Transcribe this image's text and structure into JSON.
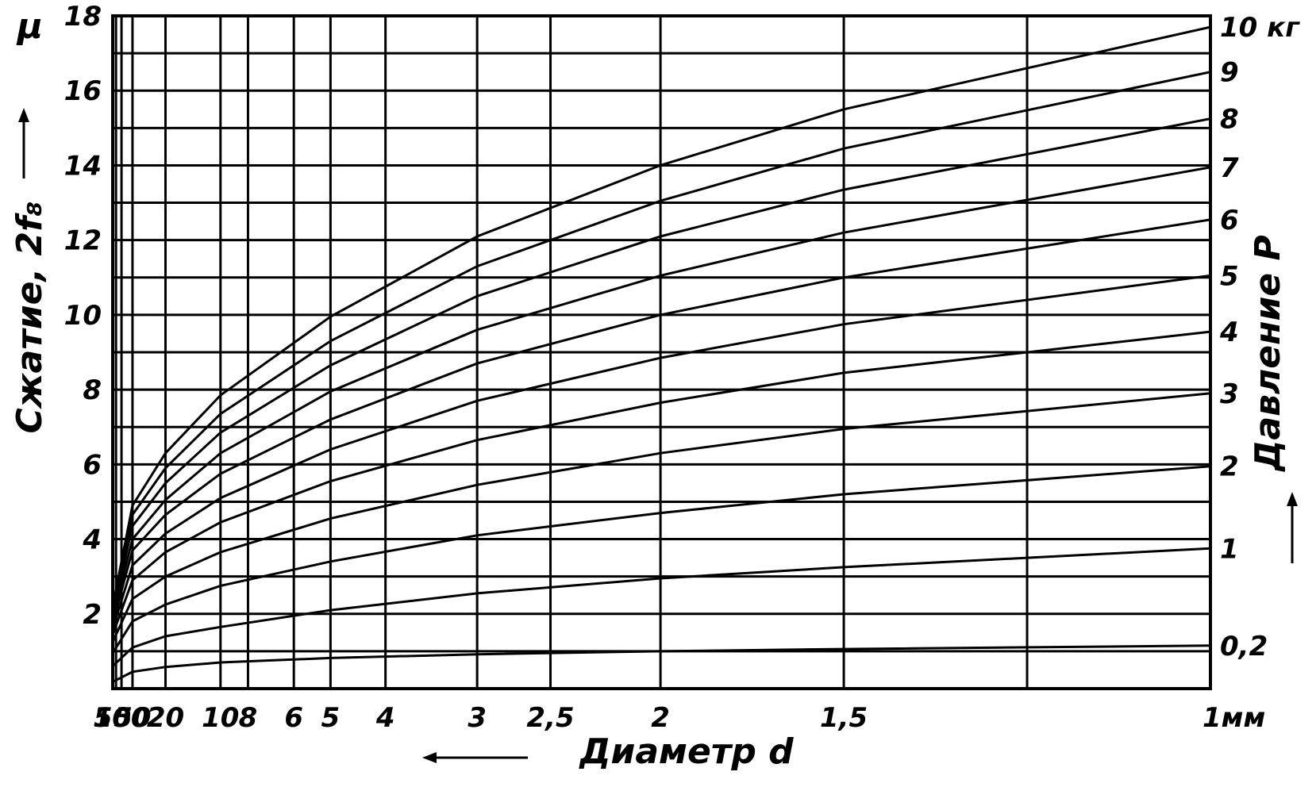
{
  "chart_data": {
    "type": "line",
    "title": "",
    "xlabel": "Диаметр d",
    "ylabel": "Сжатие, 2f₈",
    "y_unit_label": "μ",
    "y2label": "Давление P",
    "x_scale": "reciprocal",
    "x_unit": "мм",
    "xlim": [
      500,
      1
    ],
    "ylim": [
      0,
      18
    ],
    "grid": true,
    "x_ticks": [
      {
        "value": 500,
        "label": "500"
      },
      {
        "value": 100,
        "label": "100"
      },
      {
        "value": 50,
        "label": "50"
      },
      {
        "value": 20,
        "label": "20"
      },
      {
        "value": 10,
        "label": "10"
      },
      {
        "value": 8,
        "label": "8"
      },
      {
        "value": 6,
        "label": "6"
      },
      {
        "value": 5,
        "label": "5"
      },
      {
        "value": 4,
        "label": "4"
      },
      {
        "value": 3,
        "label": "3"
      },
      {
        "value": 2.5,
        "label": "2,5"
      },
      {
        "value": 2,
        "label": "2"
      },
      {
        "value": 1.5,
        "label": "1,5"
      },
      {
        "value": 1,
        "label": "1мм"
      }
    ],
    "y_ticks": [
      {
        "value": 2,
        "label": "2"
      },
      {
        "value": 4,
        "label": "4"
      },
      {
        "value": 6,
        "label": "6"
      },
      {
        "value": 8,
        "label": "8"
      },
      {
        "value": 10,
        "label": "10"
      },
      {
        "value": 12,
        "label": "12"
      },
      {
        "value": 14,
        "label": "14"
      },
      {
        "value": 16,
        "label": "16"
      },
      {
        "value": 18,
        "label": "18"
      }
    ],
    "x_grid_values": [
      500,
      200,
      100,
      50,
      20,
      10,
      8,
      6,
      5,
      4,
      3,
      2.5,
      2,
      1.5,
      1.2,
      1
    ],
    "y_grid_values": [
      0,
      1,
      2,
      3,
      4,
      5,
      6,
      7,
      8,
      9,
      10,
      11,
      12,
      13,
      14,
      15,
      16,
      17,
      18
    ],
    "series": [
      {
        "name": "0,2",
        "x": [
          500,
          50,
          20,
          10,
          5,
          3,
          2,
          1.5,
          1
        ],
        "y": [
          0.18,
          0.45,
          0.58,
          0.7,
          0.82,
          0.92,
          1.0,
          1.06,
          1.15
        ]
      },
      {
        "name": "1",
        "x": [
          500,
          50,
          20,
          10,
          5,
          3,
          2,
          1.5,
          1
        ],
        "y": [
          0.6,
          1.1,
          1.4,
          1.65,
          2.1,
          2.55,
          2.95,
          3.25,
          3.75
        ]
      },
      {
        "name": "2",
        "x": [
          500,
          50,
          20,
          10,
          5,
          3,
          2,
          1.5,
          1
        ],
        "y": [
          0.95,
          1.8,
          2.25,
          2.75,
          3.4,
          4.1,
          4.7,
          5.2,
          5.95
        ]
      },
      {
        "name": "3",
        "x": [
          500,
          50,
          20,
          10,
          5,
          3,
          2,
          1.5,
          1
        ],
        "y": [
          1.25,
          2.4,
          3.0,
          3.65,
          4.55,
          5.45,
          6.3,
          6.95,
          7.9
        ]
      },
      {
        "name": "4",
        "x": [
          500,
          50,
          20,
          10,
          5,
          3,
          2,
          1.5,
          1
        ],
        "y": [
          1.45,
          2.9,
          3.65,
          4.45,
          5.55,
          6.65,
          7.65,
          8.45,
          9.55
        ]
      },
      {
        "name": "5",
        "x": [
          500,
          50,
          20,
          10,
          5,
          3,
          2,
          1.5,
          1
        ],
        "y": [
          1.6,
          3.3,
          4.15,
          5.1,
          6.4,
          7.7,
          8.85,
          9.75,
          11.05
        ]
      },
      {
        "name": "6",
        "x": [
          500,
          50,
          20,
          10,
          5,
          3,
          2,
          1.5,
          1
        ],
        "y": [
          1.75,
          3.7,
          4.65,
          5.75,
          7.2,
          8.7,
          10.0,
          11.0,
          12.55
        ]
      },
      {
        "name": "7",
        "x": [
          500,
          50,
          20,
          10,
          5,
          3,
          2,
          1.5,
          1
        ],
        "y": [
          1.9,
          4.0,
          5.05,
          6.3,
          7.95,
          9.6,
          11.05,
          12.2,
          13.95
        ]
      },
      {
        "name": "8",
        "x": [
          500,
          50,
          20,
          10,
          5,
          3,
          2,
          1.5,
          1
        ],
        "y": [
          2.0,
          4.35,
          5.5,
          6.85,
          8.65,
          10.5,
          12.1,
          13.35,
          15.25
        ]
      },
      {
        "name": "9",
        "x": [
          500,
          50,
          20,
          10,
          5,
          3,
          2,
          1.5,
          1
        ],
        "y": [
          2.1,
          4.65,
          5.9,
          7.35,
          9.3,
          11.3,
          13.05,
          14.45,
          16.5
        ]
      },
      {
        "name": "10 кг",
        "x": [
          500,
          50,
          20,
          10,
          5,
          3,
          2,
          1.5,
          1
        ],
        "y": [
          2.2,
          4.9,
          6.3,
          7.85,
          9.95,
          12.1,
          14.0,
          15.5,
          17.7
        ]
      }
    ]
  }
}
